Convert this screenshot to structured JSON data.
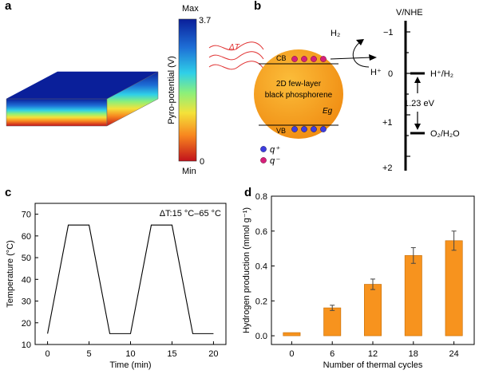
{
  "panel_letters": {
    "a": "a",
    "b": "b",
    "c": "c",
    "d": "d"
  },
  "panel_a": {
    "colorbar_max_label": "Max",
    "colorbar_max_value": "3.7",
    "colorbar_min_label": "Min",
    "colorbar_min_value": "0",
    "colorbar_axis_label": "Pyro-potential (V)",
    "colorbar_colors": [
      "#0a1f9a",
      "#1e6fd6",
      "#2fd0e8",
      "#8cf07a",
      "#f4e23a",
      "#f7861f",
      "#c2121b"
    ],
    "block_top_color": "#0a1f9a"
  },
  "panel_b": {
    "delta_t_label": "ΔT",
    "sphere_line1": "2D few-layer",
    "sphere_line2": "black phosphorene",
    "cb_label": "CB",
    "vb_label": "VB",
    "eg_label": "Eg",
    "h2_label": "H₂",
    "hplus_label": "H⁺",
    "axis_title": "V/NHE",
    "ticks": [
      "−1",
      "0",
      "+1",
      "+2"
    ],
    "hplus_h2_label": "H⁺/H₂",
    "o2_h2o_label": "O₂/H₂O",
    "gap_label": "1.23 eV",
    "legend_qplus": "q⁺",
    "legend_qminus": "q⁻",
    "sphere_color": "#f5a21c",
    "qplus_color": "#3d3de0",
    "qminus_color": "#d61f7a"
  },
  "panel_c": {
    "annotation": "ΔT:15 °C–65 °C",
    "xlabel": "Time (min)",
    "ylabel": "Temperature (°C)"
  },
  "panel_d": {
    "xlabel": "Number of thermal cycles",
    "ylabel": "Hydrogen production (mmol g⁻¹)"
  },
  "chart_data": [
    {
      "type": "line",
      "id": "c",
      "xlabel": "Time (min)",
      "ylabel": "Temperature (°C)",
      "xlim": [
        -1.5,
        21.5
      ],
      "ylim": [
        10,
        75
      ],
      "xticks": [
        0,
        5,
        10,
        15,
        20
      ],
      "yticks": [
        10,
        20,
        30,
        40,
        50,
        60,
        70
      ],
      "series": [
        {
          "x": [
            0,
            2.5,
            5,
            7.5,
            10,
            12.5,
            15,
            17.5,
            20
          ],
          "y": [
            15,
            65,
            65,
            15,
            15,
            65,
            65,
            15,
            15
          ]
        }
      ],
      "annotation": "ΔT:15 °C–65 °C"
    },
    {
      "type": "bar",
      "id": "d",
      "xlabel": "Number of thermal cycles",
      "ylabel": "Hydrogen production (mmol g⁻¹)",
      "categories": [
        "0",
        "6",
        "12",
        "18",
        "24"
      ],
      "values": [
        0.0,
        0.16,
        0.295,
        0.46,
        0.545
      ],
      "errors": [
        0.0,
        0.015,
        0.03,
        0.045,
        0.055
      ],
      "ylim": [
        -0.05,
        0.8
      ],
      "yticks": [
        0.0,
        0.2,
        0.4,
        0.6,
        0.8
      ],
      "ytick_labels": [
        "0.0",
        "0.2",
        "0.4",
        "0.6",
        "0.8"
      ],
      "bar_color": "#f7931e"
    }
  ]
}
